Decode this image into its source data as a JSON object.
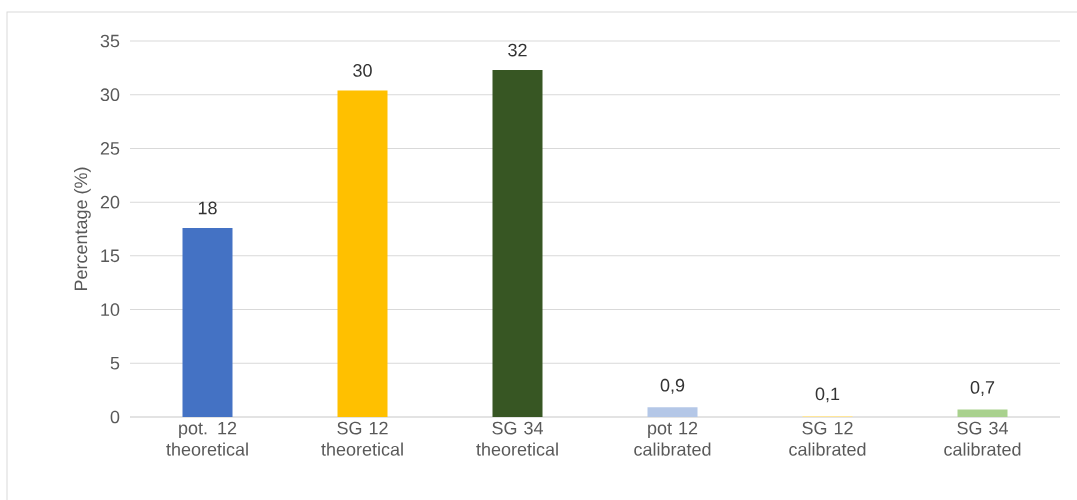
{
  "chart_data": {
    "type": "bar",
    "ylabel": "Percentage (%)",
    "categories": [
      "pot. 12 theoretical",
      "SG 12 theoretical",
      "SG 34 theoretical",
      "pot 12 calibrated",
      "SG 12 calibrated",
      "SG 34 calibrated"
    ],
    "values": [
      17.6,
      30.4,
      32.3,
      0.9,
      0.1,
      0.7
    ],
    "value_labels": [
      "18",
      "30",
      "32",
      "0,9",
      "0,1",
      "0,7"
    ],
    "colors": [
      "#4472c4",
      "#ffc000",
      "#375623",
      "#b4c7e7",
      "#ffe699",
      "#a9d18e"
    ],
    "ylim": [
      0,
      35
    ],
    "yticks": [
      0,
      5,
      10,
      15,
      20,
      25,
      30,
      35
    ],
    "grid": "y"
  }
}
